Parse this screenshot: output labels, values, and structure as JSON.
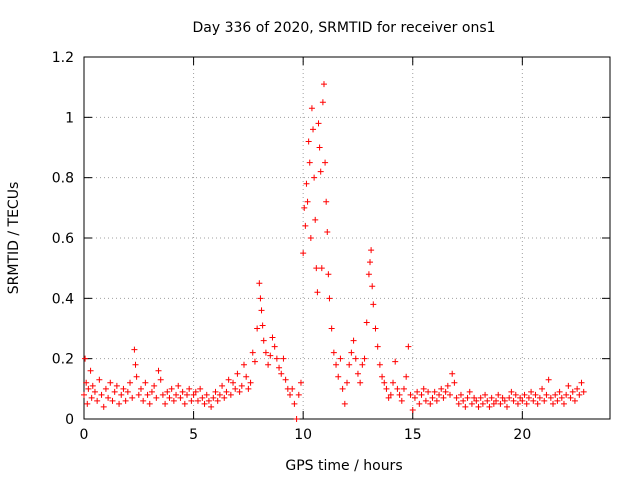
{
  "chart_data": {
    "type": "scatter",
    "title": "Day 336 of 2020, SRMTID for receiver ons1",
    "xlabel": "GPS time / hours",
    "ylabel": "SRMTID / TECUs",
    "xlim": [
      0,
      24
    ],
    "ylim": [
      0,
      1.2
    ],
    "xticks": [
      0,
      5,
      10,
      15,
      20
    ],
    "yticks": [
      0,
      0.2,
      0.4,
      0.6,
      0.8,
      1,
      1.2
    ],
    "xtick_labels": [
      "0",
      "5",
      "10",
      "15",
      "20"
    ],
    "ytick_labels": [
      "0",
      "0.2",
      "0.4",
      "0.6",
      "0.8",
      "1",
      "1.2"
    ],
    "grid": true,
    "marker": "+",
    "color": "#ff0000",
    "series": [
      {
        "name": "SRMTID",
        "points": [
          [
            0.0,
            0.08
          ],
          [
            0.05,
            0.2
          ],
          [
            0.1,
            0.12
          ],
          [
            0.15,
            0.05
          ],
          [
            0.2,
            0.1
          ],
          [
            0.3,
            0.16
          ],
          [
            0.35,
            0.07
          ],
          [
            0.4,
            0.11
          ],
          [
            0.5,
            0.09
          ],
          [
            0.6,
            0.06
          ],
          [
            0.7,
            0.13
          ],
          [
            0.8,
            0.08
          ],
          [
            0.9,
            0.04
          ],
          [
            1.0,
            0.1
          ],
          [
            1.1,
            0.07
          ],
          [
            1.2,
            0.12
          ],
          [
            1.3,
            0.06
          ],
          [
            1.4,
            0.09
          ],
          [
            1.5,
            0.11
          ],
          [
            1.6,
            0.05
          ],
          [
            1.7,
            0.08
          ],
          [
            1.8,
            0.1
          ],
          [
            1.9,
            0.06
          ],
          [
            2.0,
            0.09
          ],
          [
            2.1,
            0.12
          ],
          [
            2.2,
            0.07
          ],
          [
            2.3,
            0.23
          ],
          [
            2.35,
            0.18
          ],
          [
            2.4,
            0.14
          ],
          [
            2.5,
            0.08
          ],
          [
            2.6,
            0.1
          ],
          [
            2.7,
            0.06
          ],
          [
            2.8,
            0.12
          ],
          [
            2.9,
            0.08
          ],
          [
            3.0,
            0.05
          ],
          [
            3.1,
            0.09
          ],
          [
            3.2,
            0.11
          ],
          [
            3.3,
            0.07
          ],
          [
            3.4,
            0.16
          ],
          [
            3.5,
            0.13
          ],
          [
            3.6,
            0.08
          ],
          [
            3.7,
            0.05
          ],
          [
            3.8,
            0.09
          ],
          [
            3.9,
            0.07
          ],
          [
            4.0,
            0.1
          ],
          [
            4.1,
            0.06
          ],
          [
            4.2,
            0.08
          ],
          [
            4.3,
            0.11
          ],
          [
            4.4,
            0.07
          ],
          [
            4.5,
            0.09
          ],
          [
            4.6,
            0.05
          ],
          [
            4.7,
            0.08
          ],
          [
            4.8,
            0.1
          ],
          [
            4.9,
            0.06
          ],
          [
            5.0,
            0.08
          ],
          [
            5.1,
            0.09
          ],
          [
            5.2,
            0.06
          ],
          [
            5.3,
            0.1
          ],
          [
            5.4,
            0.07
          ],
          [
            5.5,
            0.05
          ],
          [
            5.6,
            0.08
          ],
          [
            5.7,
            0.06
          ],
          [
            5.8,
            0.04
          ],
          [
            5.9,
            0.07
          ],
          [
            6.0,
            0.09
          ],
          [
            6.1,
            0.06
          ],
          [
            6.2,
            0.08
          ],
          [
            6.3,
            0.11
          ],
          [
            6.4,
            0.07
          ],
          [
            6.5,
            0.09
          ],
          [
            6.6,
            0.13
          ],
          [
            6.7,
            0.08
          ],
          [
            6.8,
            0.12
          ],
          [
            6.9,
            0.1
          ],
          [
            7.0,
            0.15
          ],
          [
            7.1,
            0.09
          ],
          [
            7.2,
            0.11
          ],
          [
            7.3,
            0.18
          ],
          [
            7.4,
            0.14
          ],
          [
            7.5,
            0.1
          ],
          [
            7.6,
            0.12
          ],
          [
            7.7,
            0.22
          ],
          [
            7.8,
            0.19
          ],
          [
            7.9,
            0.3
          ],
          [
            8.0,
            0.45
          ],
          [
            8.05,
            0.4
          ],
          [
            8.1,
            0.36
          ],
          [
            8.15,
            0.31
          ],
          [
            8.2,
            0.26
          ],
          [
            8.3,
            0.22
          ],
          [
            8.4,
            0.18
          ],
          [
            8.5,
            0.21
          ],
          [
            8.6,
            0.27
          ],
          [
            8.7,
            0.24
          ],
          [
            8.8,
            0.2
          ],
          [
            8.9,
            0.17
          ],
          [
            9.0,
            0.15
          ],
          [
            9.1,
            0.2
          ],
          [
            9.2,
            0.13
          ],
          [
            9.3,
            0.1
          ],
          [
            9.4,
            0.08
          ],
          [
            9.5,
            0.1
          ],
          [
            9.6,
            0.05
          ],
          [
            9.7,
            0.0
          ],
          [
            9.8,
            0.08
          ],
          [
            9.9,
            0.12
          ],
          [
            10.0,
            0.55
          ],
          [
            10.05,
            0.7
          ],
          [
            10.1,
            0.64
          ],
          [
            10.15,
            0.78
          ],
          [
            10.2,
            0.72
          ],
          [
            10.25,
            0.92
          ],
          [
            10.3,
            0.85
          ],
          [
            10.35,
            0.6
          ],
          [
            10.4,
            1.03
          ],
          [
            10.45,
            0.96
          ],
          [
            10.5,
            0.8
          ],
          [
            10.55,
            0.66
          ],
          [
            10.6,
            0.5
          ],
          [
            10.65,
            0.42
          ],
          [
            10.7,
            0.98
          ],
          [
            10.75,
            0.9
          ],
          [
            10.8,
            0.82
          ],
          [
            10.85,
            0.5
          ],
          [
            10.9,
            1.05
          ],
          [
            10.95,
            1.11
          ],
          [
            11.0,
            0.85
          ],
          [
            11.05,
            0.72
          ],
          [
            11.1,
            0.62
          ],
          [
            11.15,
            0.48
          ],
          [
            11.2,
            0.4
          ],
          [
            11.3,
            0.3
          ],
          [
            11.4,
            0.22
          ],
          [
            11.5,
            0.18
          ],
          [
            11.6,
            0.14
          ],
          [
            11.7,
            0.2
          ],
          [
            11.8,
            0.1
          ],
          [
            11.9,
            0.05
          ],
          [
            12.0,
            0.12
          ],
          [
            12.1,
            0.18
          ],
          [
            12.2,
            0.22
          ],
          [
            12.3,
            0.26
          ],
          [
            12.4,
            0.2
          ],
          [
            12.5,
            0.15
          ],
          [
            12.6,
            0.12
          ],
          [
            12.7,
            0.18
          ],
          [
            12.8,
            0.2
          ],
          [
            12.9,
            0.32
          ],
          [
            13.0,
            0.48
          ],
          [
            13.05,
            0.52
          ],
          [
            13.1,
            0.56
          ],
          [
            13.15,
            0.44
          ],
          [
            13.2,
            0.38
          ],
          [
            13.3,
            0.3
          ],
          [
            13.4,
            0.24
          ],
          [
            13.5,
            0.18
          ],
          [
            13.6,
            0.14
          ],
          [
            13.7,
            0.12
          ],
          [
            13.8,
            0.1
          ],
          [
            13.9,
            0.07
          ],
          [
            14.0,
            0.08
          ],
          [
            14.1,
            0.12
          ],
          [
            14.2,
            0.19
          ],
          [
            14.3,
            0.1
          ],
          [
            14.4,
            0.08
          ],
          [
            14.5,
            0.06
          ],
          [
            14.6,
            0.1
          ],
          [
            14.7,
            0.14
          ],
          [
            14.8,
            0.24
          ],
          [
            14.9,
            0.08
          ],
          [
            15.0,
            0.03
          ],
          [
            15.1,
            0.07
          ],
          [
            15.2,
            0.09
          ],
          [
            15.3,
            0.05
          ],
          [
            15.4,
            0.08
          ],
          [
            15.5,
            0.1
          ],
          [
            15.6,
            0.06
          ],
          [
            15.7,
            0.09
          ],
          [
            15.8,
            0.05
          ],
          [
            15.9,
            0.07
          ],
          [
            16.0,
            0.09
          ],
          [
            16.1,
            0.06
          ],
          [
            16.2,
            0.08
          ],
          [
            16.3,
            0.1
          ],
          [
            16.4,
            0.07
          ],
          [
            16.5,
            0.09
          ],
          [
            16.6,
            0.11
          ],
          [
            16.7,
            0.08
          ],
          [
            16.8,
            0.15
          ],
          [
            16.9,
            0.12
          ],
          [
            17.0,
            0.07
          ],
          [
            17.1,
            0.05
          ],
          [
            17.2,
            0.08
          ],
          [
            17.3,
            0.06
          ],
          [
            17.4,
            0.04
          ],
          [
            17.5,
            0.07
          ],
          [
            17.6,
            0.09
          ],
          [
            17.7,
            0.05
          ],
          [
            17.8,
            0.07
          ],
          [
            17.9,
            0.06
          ],
          [
            18.0,
            0.04
          ],
          [
            18.1,
            0.07
          ],
          [
            18.2,
            0.05
          ],
          [
            18.3,
            0.08
          ],
          [
            18.4,
            0.06
          ],
          [
            18.5,
            0.04
          ],
          [
            18.6,
            0.07
          ],
          [
            18.7,
            0.05
          ],
          [
            18.8,
            0.06
          ],
          [
            18.9,
            0.08
          ],
          [
            19.0,
            0.05
          ],
          [
            19.1,
            0.07
          ],
          [
            19.2,
            0.06
          ],
          [
            19.3,
            0.04
          ],
          [
            19.4,
            0.07
          ],
          [
            19.5,
            0.09
          ],
          [
            19.6,
            0.06
          ],
          [
            19.7,
            0.08
          ],
          [
            19.8,
            0.05
          ],
          [
            19.9,
            0.07
          ],
          [
            20.0,
            0.06
          ],
          [
            20.1,
            0.08
          ],
          [
            20.2,
            0.05
          ],
          [
            20.3,
            0.07
          ],
          [
            20.4,
            0.09
          ],
          [
            20.5,
            0.06
          ],
          [
            20.6,
            0.08
          ],
          [
            20.7,
            0.05
          ],
          [
            20.8,
            0.07
          ],
          [
            20.9,
            0.1
          ],
          [
            21.0,
            0.06
          ],
          [
            21.1,
            0.08
          ],
          [
            21.2,
            0.13
          ],
          [
            21.3,
            0.07
          ],
          [
            21.4,
            0.05
          ],
          [
            21.5,
            0.08
          ],
          [
            21.6,
            0.06
          ],
          [
            21.7,
            0.09
          ],
          [
            21.8,
            0.07
          ],
          [
            21.9,
            0.05
          ],
          [
            22.0,
            0.08
          ],
          [
            22.1,
            0.11
          ],
          [
            22.2,
            0.07
          ],
          [
            22.3,
            0.09
          ],
          [
            22.4,
            0.06
          ],
          [
            22.5,
            0.1
          ],
          [
            22.6,
            0.08
          ],
          [
            22.7,
            0.12
          ],
          [
            22.8,
            0.09
          ]
        ]
      }
    ]
  }
}
